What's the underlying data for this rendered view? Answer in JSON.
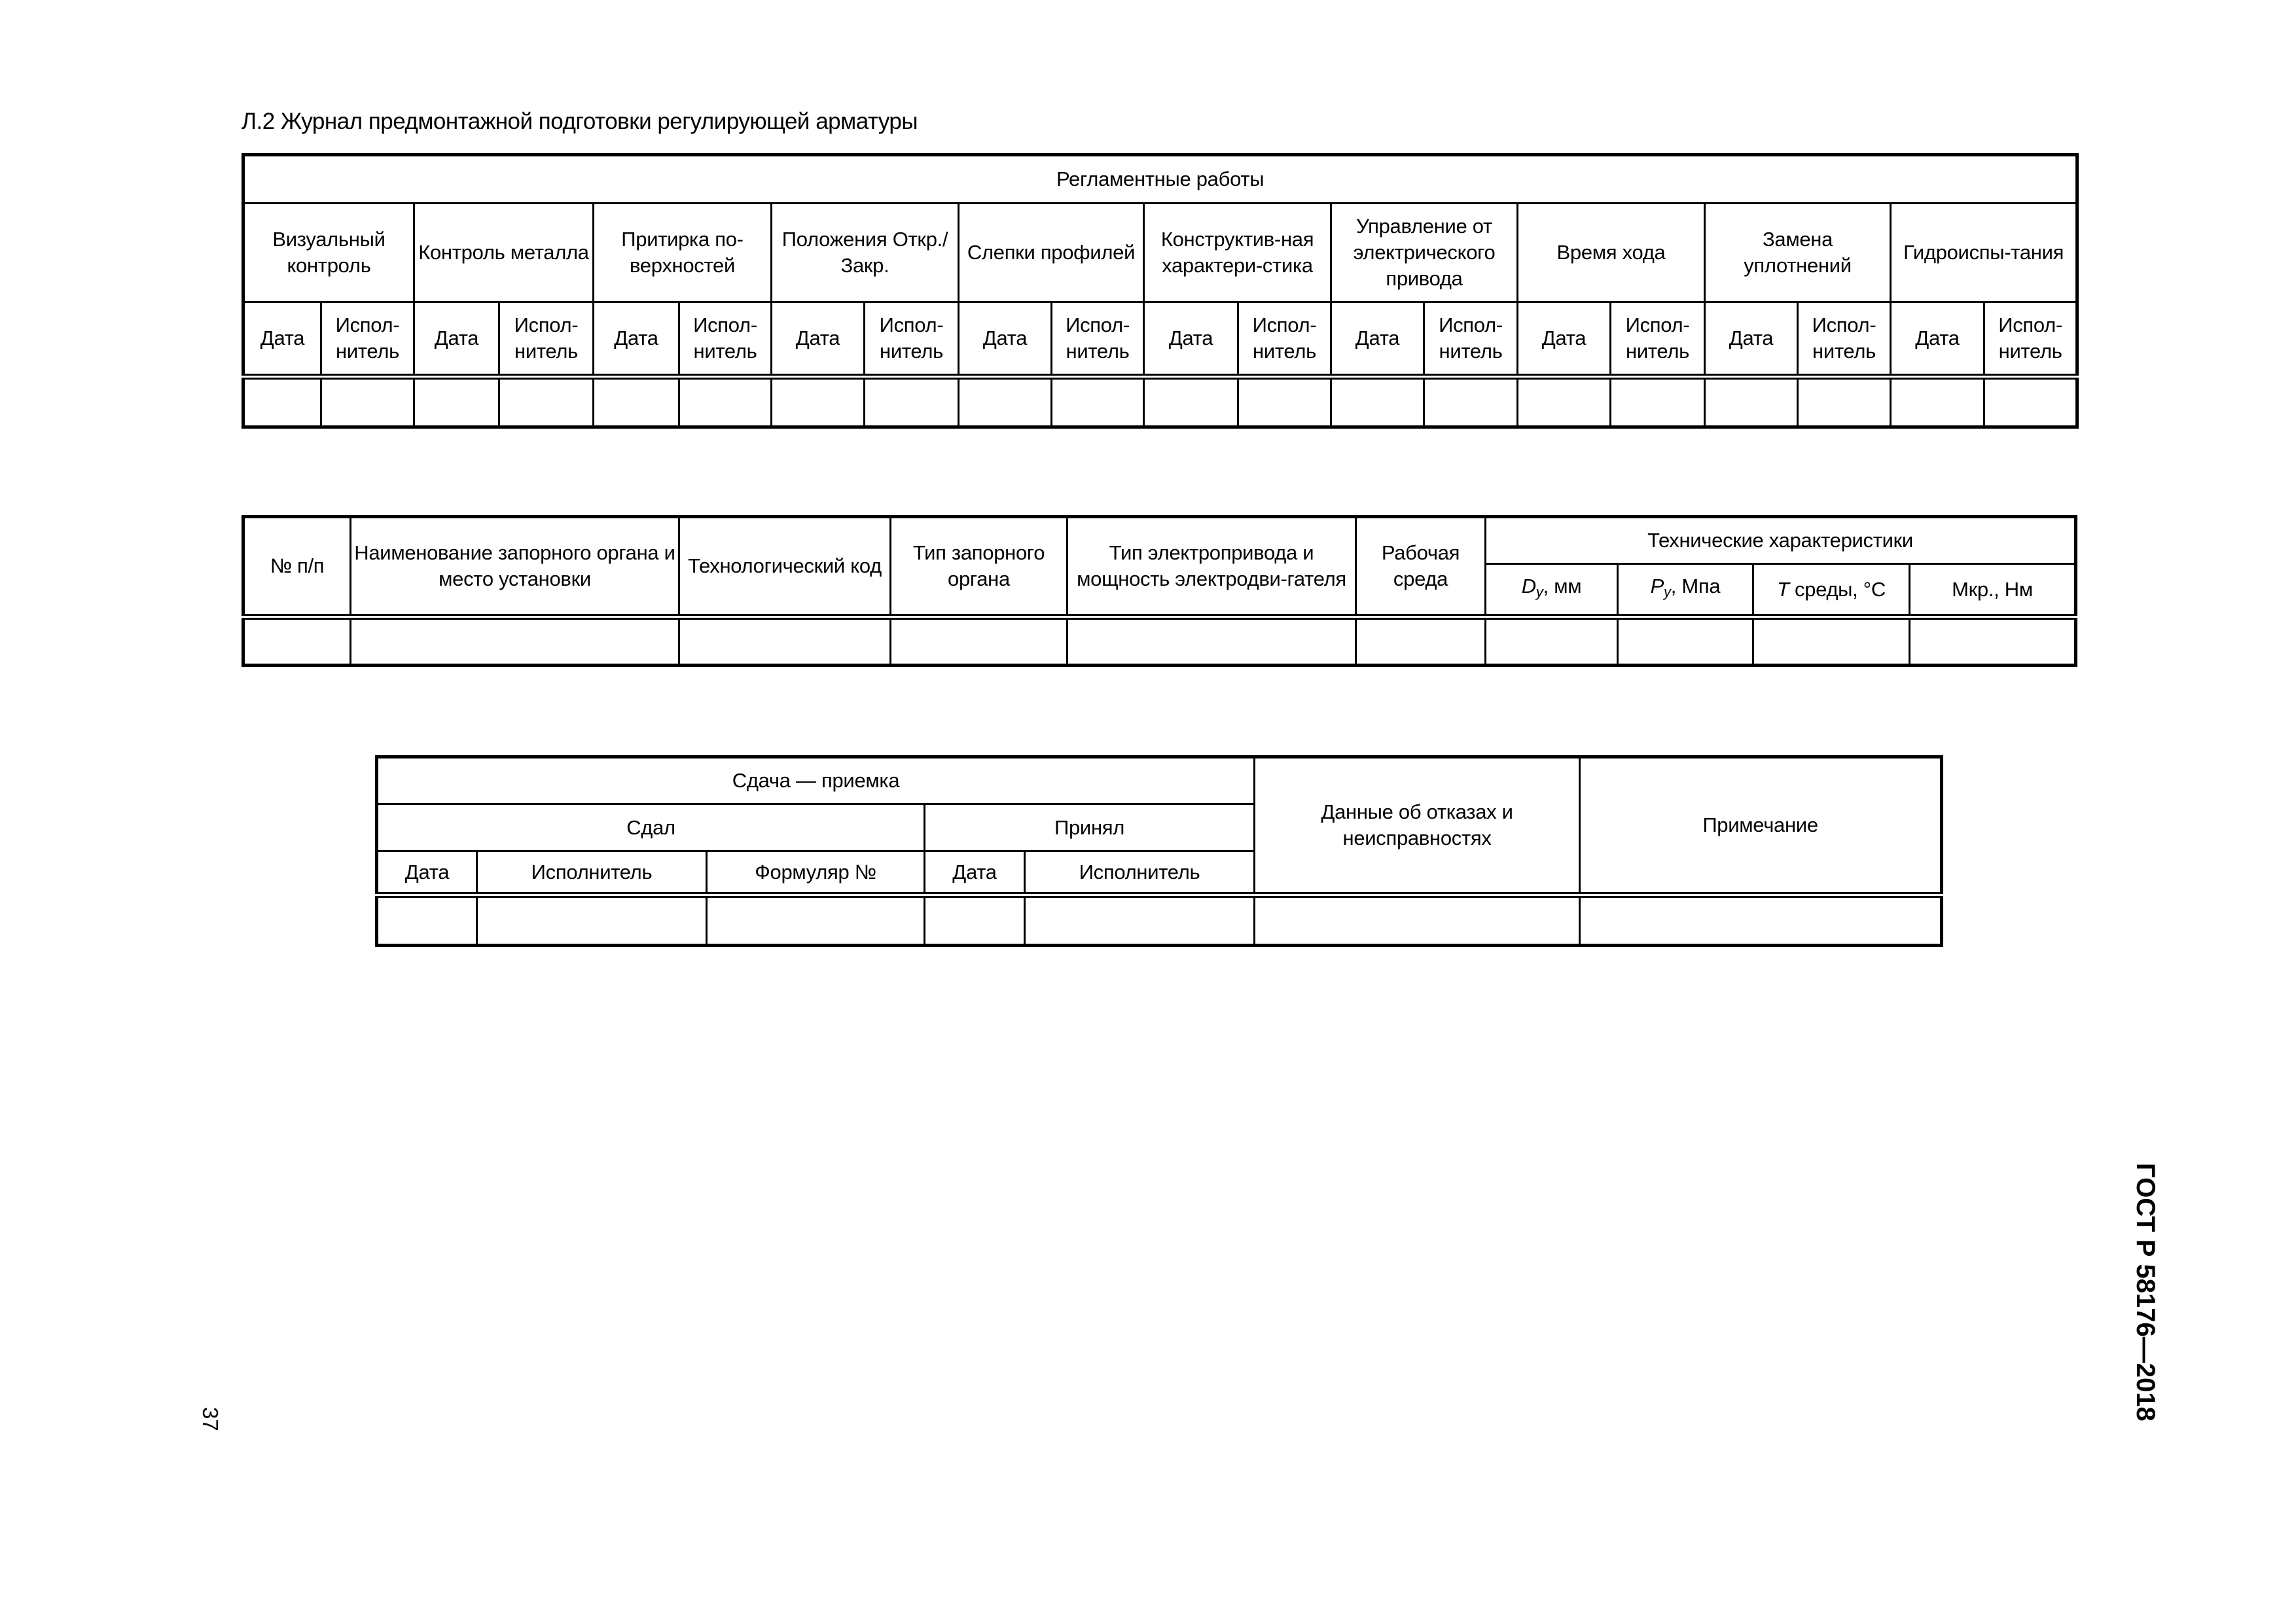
{
  "title": "Л.2 Журнал предмонтажной подготовки регулирующей арматуры",
  "table1": {
    "header": "Регламентные работы",
    "groups": [
      "Визуальный контроль",
      "Контроль металла",
      "Притирка по-верхностей",
      "Положения Откр./Закр.",
      "Слепки профилей",
      "Конструктив-ная характери-стика",
      "Управление от электрического привода",
      "Время хода",
      "Замена уплотнений",
      "Гидроиспы-тания"
    ],
    "sub_date": "Дата",
    "sub_exec": "Испол-нитель"
  },
  "table2": {
    "col_num": "№ п/п",
    "col_name": "Наименование запорного органа и место установки",
    "col_code": "Технологический код",
    "col_type": "Тип запорного органа",
    "col_drive": "Тип электропривода и мощность электродви-гателя",
    "col_medium": "Рабочая среда",
    "tech_header": "Технические характеристики",
    "dy_sym": "D",
    "dy_sub": "y",
    "dy_unit": ", мм",
    "py_sym": "P",
    "py_sub": "y",
    "py_unit": ", Мпа",
    "t_sym": "T",
    "t_unit": " среды, °С",
    "mkr": "Мкр., Нм"
  },
  "table3": {
    "header": "Сдача — приемка",
    "gave": "Сдал",
    "accepted": "Принял",
    "failures": "Данные об отказах и неисправностях",
    "note": "Примечание",
    "date1": "Дата",
    "exec1": "Исполнитель",
    "form": "Формуляр №",
    "date2": "Дата",
    "exec2": "Исполнитель"
  },
  "side_label": "ГОСТ Р 58176—2018",
  "page_number": "37"
}
